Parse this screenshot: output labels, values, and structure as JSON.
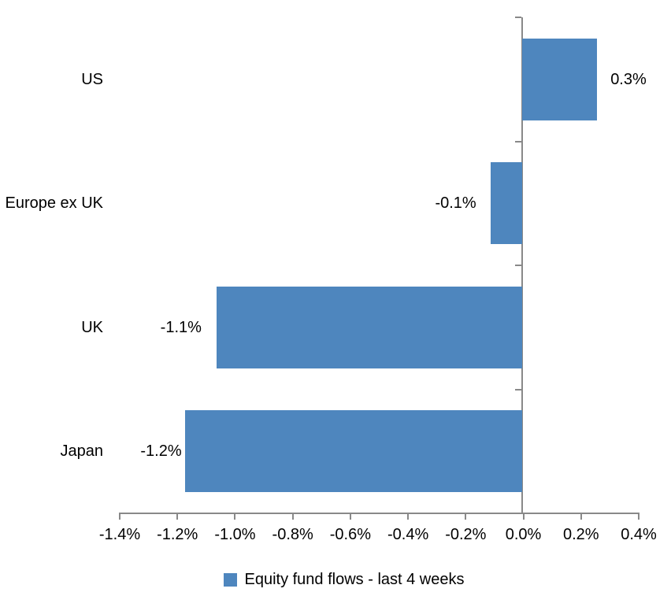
{
  "chart": {
    "legend": {
      "label": "Equity fund flows - last 4 weeks"
    },
    "colors": {
      "bar": "#4E86BE",
      "axis": "#898989",
      "text": "#000000",
      "background": "#FFFFFF"
    }
  },
  "chart_data": {
    "type": "bar",
    "orientation": "horizontal",
    "title": "",
    "xlabel": "",
    "ylabel": "",
    "categories": [
      "US",
      "Europe ex UK",
      "UK",
      "Japan"
    ],
    "series": [
      {
        "name": "Equity fund flows - last 4 weeks",
        "values": [
          0.3,
          -0.1,
          -1.1,
          -1.2
        ],
        "plotted_values": [
          0.26,
          -0.11,
          -1.06,
          -1.17
        ],
        "data_labels": [
          "0.3%",
          "-0.1%",
          "-1.1%",
          "-1.2%"
        ]
      }
    ],
    "x_ticks": [
      "-1.4%",
      "-1.2%",
      "-1.0%",
      "-0.8%",
      "-0.6%",
      "-0.4%",
      "-0.2%",
      "0.0%",
      "0.2%",
      "0.4%"
    ],
    "x_tick_values": [
      -1.4,
      -1.2,
      -1.0,
      -0.8,
      -0.6,
      -0.4,
      -0.2,
      0.0,
      0.2,
      0.4
    ],
    "xlim": [
      -1.4,
      0.4
    ],
    "unit": "%",
    "grid": false,
    "legend_position": "bottom",
    "data_label_position": "outside-end"
  }
}
